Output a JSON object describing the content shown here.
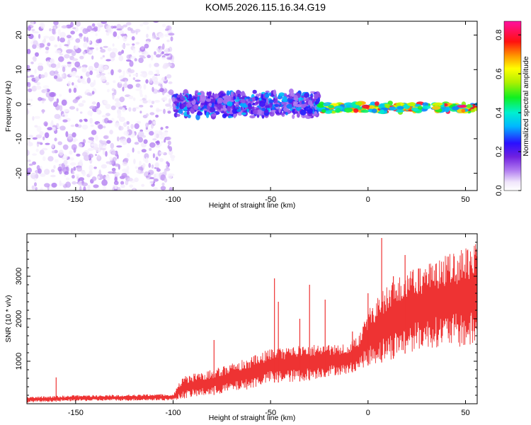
{
  "figure": {
    "title": "KOM5.2026.115.16.34.G19"
  },
  "chart_data": [
    {
      "type": "heatmap",
      "title": "KOM5.2026.115.16.34.G19",
      "xlabel": "Height of straight line (km)",
      "ylabel": "Frequency (Hz)",
      "xlim": [
        -175,
        56
      ],
      "ylim": [
        -25,
        24
      ],
      "xticks": [
        -150,
        -100,
        -50,
        0,
        50
      ],
      "yticks": [
        -20,
        -10,
        0,
        10,
        20
      ],
      "xtick_labels": [
        "-150",
        "-100",
        "-50",
        "0",
        "50"
      ],
      "ytick_labels": [
        "-20",
        "-10",
        "0",
        "10",
        "20"
      ],
      "colorbar": {
        "label": "Normalized spectral amplitude",
        "range": [
          0.0,
          0.87
        ],
        "ticks": [
          0.0,
          0.2,
          0.4,
          0.6,
          0.8
        ],
        "tick_labels": [
          "0.0",
          "0.2",
          "0.4",
          "0.6",
          "0.8"
        ]
      },
      "description_regions": [
        {
          "x_range": [
            -175,
            -100
          ],
          "freq_range": [
            -25,
            24
          ],
          "amplitude_range": [
            0.02,
            0.12
          ],
          "pattern": "scattered noise"
        },
        {
          "x_range": [
            -100,
            -25
          ],
          "freq_center": 0,
          "freq_halfwidth": 4,
          "amplitude_range": [
            0.1,
            0.35
          ],
          "pattern": "band around 0 Hz"
        },
        {
          "x_range": [
            -25,
            56
          ],
          "freq_center": -1,
          "freq_halfwidth": 1.5,
          "amplitude_range": [
            0.3,
            0.85
          ],
          "pattern": "narrow strong band"
        }
      ]
    },
    {
      "type": "line",
      "title": "",
      "xlabel": "Height of straight line (km)",
      "ylabel": "SNR (10 * v/v)",
      "xlim": [
        -175,
        56
      ],
      "ylim": [
        0,
        4000
      ],
      "xticks": [
        -150,
        -100,
        -50,
        0,
        50
      ],
      "yticks": [
        1000,
        2000,
        3000
      ],
      "xtick_labels": [
        "-150",
        "-100",
        "-50",
        "0",
        "50"
      ],
      "ytick_labels": [
        "1000",
        "2000",
        "3000"
      ],
      "color": "#ee3333",
      "envelope": {
        "x": [
          -175,
          -150,
          -100,
          -95,
          -80,
          -60,
          -50,
          -40,
          -30,
          -20,
          -10,
          -5,
          0,
          5,
          10,
          20,
          30,
          40,
          50,
          56
        ],
        "low": [
          30,
          60,
          80,
          120,
          200,
          350,
          500,
          500,
          550,
          650,
          700,
          800,
          900,
          950,
          1000,
          1200,
          1300,
          1350,
          1300,
          1300
        ],
        "high": [
          170,
          200,
          230,
          650,
          800,
          1100,
          1300,
          1350,
          1400,
          1400,
          1400,
          1600,
          2200,
          2500,
          2800,
          3100,
          3300,
          3500,
          3700,
          3800
        ]
      },
      "spikes": [
        {
          "x": -160,
          "y": 620
        },
        {
          "x": -79,
          "y": 1500
        },
        {
          "x": -48,
          "y": 2950
        },
        {
          "x": -46,
          "y": 2400
        },
        {
          "x": -35,
          "y": 2000
        },
        {
          "x": -30,
          "y": 2800
        },
        {
          "x": -22,
          "y": 2450
        },
        {
          "x": -8,
          "y": 1700
        },
        {
          "x": 0,
          "y": 2600
        },
        {
          "x": 7,
          "y": 3900
        },
        {
          "x": 13,
          "y": 3000
        },
        {
          "x": 19,
          "y": 3500
        }
      ]
    }
  ]
}
